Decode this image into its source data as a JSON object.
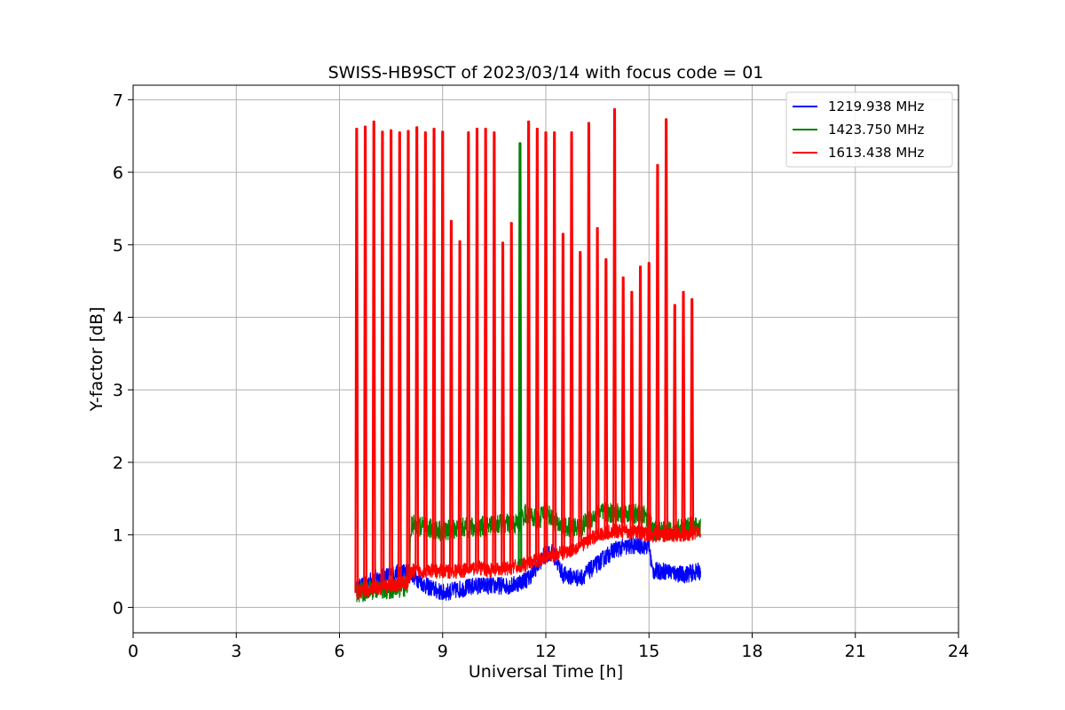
{
  "chart_data": {
    "type": "line",
    "title": "SWISS-HB9SCT of 2023/03/14 with focus code = 01",
    "xlabel": "Universal Time [h]",
    "ylabel": "Y-factor [dB]",
    "xlim": [
      0,
      24
    ],
    "ylim": [
      -0.35,
      7.2
    ],
    "xticks": [
      0,
      3,
      6,
      9,
      12,
      15,
      18,
      21,
      24
    ],
    "yticks": [
      0,
      1,
      2,
      3,
      4,
      5,
      6,
      7
    ],
    "grid": true,
    "legend_position": "top-right",
    "data_start": 6.5,
    "data_end": 16.5,
    "series": [
      {
        "name": "1219.938 MHz",
        "color": "#0000ff",
        "baseline": [
          [
            6.5,
            0.25
          ],
          [
            7.0,
            0.4
          ],
          [
            7.5,
            0.45
          ],
          [
            8.0,
            0.5
          ],
          [
            8.5,
            0.3
          ],
          [
            9.0,
            0.2
          ],
          [
            9.5,
            0.25
          ],
          [
            10.0,
            0.3
          ],
          [
            10.5,
            0.3
          ],
          [
            11.0,
            0.3
          ],
          [
            11.5,
            0.4
          ],
          [
            12.0,
            0.75
          ],
          [
            12.2,
            0.75
          ],
          [
            12.5,
            0.45
          ],
          [
            13.0,
            0.4
          ],
          [
            13.5,
            0.6
          ],
          [
            14.0,
            0.8
          ],
          [
            14.5,
            0.85
          ],
          [
            15.0,
            0.85
          ],
          [
            15.1,
            0.5
          ],
          [
            15.5,
            0.5
          ],
          [
            16.0,
            0.45
          ],
          [
            16.5,
            0.5
          ]
        ],
        "noise": 0.12
      },
      {
        "name": "1423.750 MHz",
        "color": "#008000",
        "baseline": [
          [
            6.5,
            0.2
          ],
          [
            7.0,
            0.25
          ],
          [
            7.5,
            0.25
          ],
          [
            8.0,
            0.3
          ],
          [
            8.1,
            1.15
          ],
          [
            8.5,
            1.1
          ],
          [
            9.0,
            1.05
          ],
          [
            9.5,
            1.1
          ],
          [
            10.0,
            1.1
          ],
          [
            10.5,
            1.15
          ],
          [
            11.0,
            1.15
          ],
          [
            11.2,
            1.15
          ],
          [
            11.4,
            1.3
          ],
          [
            11.8,
            1.2
          ],
          [
            12.0,
            1.35
          ],
          [
            12.2,
            1.2
          ],
          [
            12.5,
            1.1
          ],
          [
            13.0,
            1.1
          ],
          [
            13.5,
            1.3
          ],
          [
            14.0,
            1.3
          ],
          [
            14.5,
            1.3
          ],
          [
            15.0,
            1.25
          ],
          [
            15.1,
            1.05
          ],
          [
            15.5,
            1.05
          ],
          [
            16.0,
            1.1
          ],
          [
            16.5,
            1.1
          ]
        ],
        "noise": 0.14
      },
      {
        "name": "1613.438 MHz",
        "color": "#ff0000",
        "baseline": [
          [
            6.5,
            0.2
          ],
          [
            7.0,
            0.25
          ],
          [
            7.5,
            0.3
          ],
          [
            8.0,
            0.35
          ],
          [
            8.1,
            0.5
          ],
          [
            8.5,
            0.5
          ],
          [
            9.0,
            0.5
          ],
          [
            9.5,
            0.5
          ],
          [
            10.0,
            0.55
          ],
          [
            10.5,
            0.5
          ],
          [
            11.0,
            0.55
          ],
          [
            11.5,
            0.6
          ],
          [
            12.0,
            0.7
          ],
          [
            12.5,
            0.75
          ],
          [
            13.0,
            0.85
          ],
          [
            13.5,
            1.0
          ],
          [
            14.0,
            1.05
          ],
          [
            14.5,
            1.05
          ],
          [
            15.0,
            1.0
          ],
          [
            15.5,
            1.0
          ],
          [
            16.0,
            1.0
          ],
          [
            16.5,
            1.05
          ]
        ],
        "noise": 0.1
      }
    ],
    "spikes": [
      {
        "x": 6.5,
        "y": 6.6
      },
      {
        "x": 6.75,
        "y": 6.63
      },
      {
        "x": 7.0,
        "y": 6.7
      },
      {
        "x": 7.25,
        "y": 6.56
      },
      {
        "x": 7.5,
        "y": 6.58
      },
      {
        "x": 7.75,
        "y": 6.55
      },
      {
        "x": 8.0,
        "y": 6.57
      },
      {
        "x": 8.25,
        "y": 6.62
      },
      {
        "x": 8.5,
        "y": 6.55
      },
      {
        "x": 8.75,
        "y": 6.6
      },
      {
        "x": 9.0,
        "y": 6.56
      },
      {
        "x": 9.25,
        "y": 5.33
      },
      {
        "x": 9.5,
        "y": 5.05
      },
      {
        "x": 9.75,
        "y": 6.55
      },
      {
        "x": 10.0,
        "y": 6.6
      },
      {
        "x": 10.25,
        "y": 6.6
      },
      {
        "x": 10.5,
        "y": 6.55
      },
      {
        "x": 10.75,
        "y": 5.03
      },
      {
        "x": 11.0,
        "y": 5.3
      },
      {
        "x": 11.25,
        "y": 6.4,
        "color": "#008000"
      },
      {
        "x": 11.5,
        "y": 6.7
      },
      {
        "x": 11.75,
        "y": 6.6
      },
      {
        "x": 12.0,
        "y": 6.55
      },
      {
        "x": 12.25,
        "y": 6.55
      },
      {
        "x": 12.5,
        "y": 5.15
      },
      {
        "x": 12.75,
        "y": 6.55
      },
      {
        "x": 13.0,
        "y": 4.9
      },
      {
        "x": 13.25,
        "y": 6.68
      },
      {
        "x": 13.5,
        "y": 5.23
      },
      {
        "x": 13.75,
        "y": 4.8
      },
      {
        "x": 14.0,
        "y": 6.87
      },
      {
        "x": 14.25,
        "y": 4.55
      },
      {
        "x": 14.5,
        "y": 4.35
      },
      {
        "x": 14.75,
        "y": 4.7
      },
      {
        "x": 15.0,
        "y": 4.75
      },
      {
        "x": 15.25,
        "y": 6.1
      },
      {
        "x": 15.5,
        "y": 6.73
      },
      {
        "x": 15.75,
        "y": 4.17
      },
      {
        "x": 16.0,
        "y": 4.35
      },
      {
        "x": 16.25,
        "y": 4.25
      }
    ]
  }
}
